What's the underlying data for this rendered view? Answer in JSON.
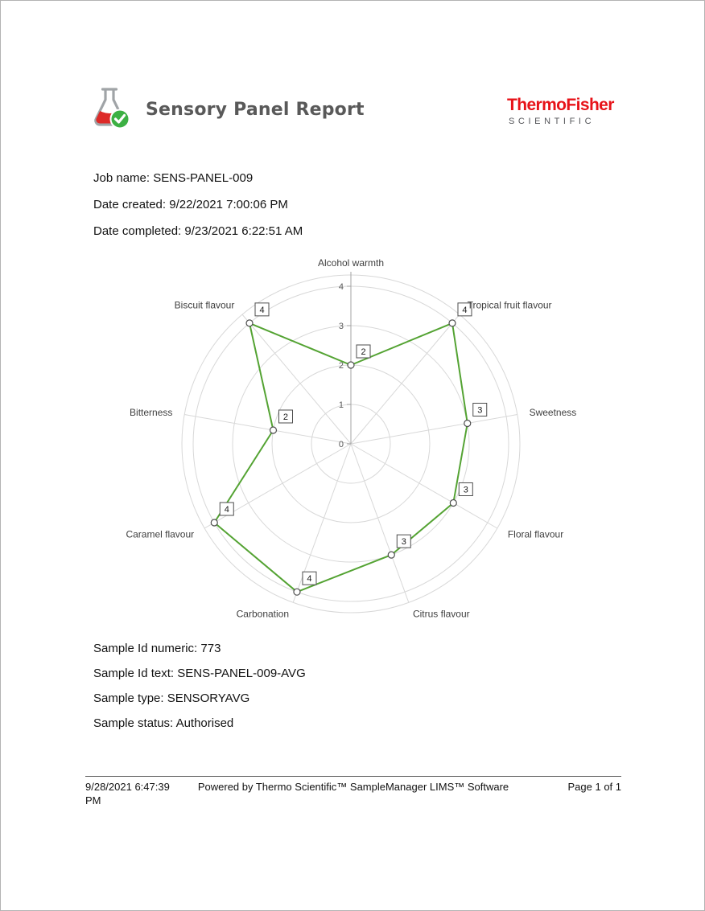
{
  "header": {
    "title": "Sensory Panel Report"
  },
  "brand": {
    "name": "ThermoFisher",
    "tagline": "SCIENTIFIC",
    "color": "#e71319"
  },
  "job": {
    "lines": [
      {
        "label": "Job name:",
        "value": "SENS-PANEL-009"
      },
      {
        "label": "Date created:",
        "value": "9/22/2021 7:00:06 PM"
      },
      {
        "label": "Date completed:",
        "value": "9/23/2021 6:22:51 AM"
      }
    ]
  },
  "sample": {
    "lines": [
      {
        "label": "Sample Id numeric:",
        "value": "773"
      },
      {
        "label": "Sample Id text:",
        "value": "SENS-PANEL-009-AVG"
      },
      {
        "label": "Sample type:",
        "value": "SENSORYAVG"
      },
      {
        "label": "Sample status:",
        "value": "Authorised"
      }
    ]
  },
  "chart_data": {
    "type": "radar",
    "categories": [
      "Alcohol warmth",
      "Tropical fruit flavour",
      "Sweetness",
      "Floral flavour",
      "Citrus flavour",
      "Carbonation",
      "Caramel flavour",
      "Bitterness",
      "Biscuit flavour"
    ],
    "values": [
      2,
      4,
      3,
      3,
      3,
      4,
      4,
      2,
      4
    ],
    "rmin": 0,
    "rmax": 4,
    "ticks": [
      0,
      1,
      2,
      3,
      4
    ],
    "series_color": "#54a333",
    "grid": true,
    "legend": false,
    "marker": "circle",
    "point_labels_boxed": true
  },
  "footer": {
    "timestamp": "9/28/2021 6:47:39 PM",
    "powered_by": "Powered by Thermo Scientific™ SampleManager LIMS™ Software",
    "page": "Page 1 of 1"
  }
}
